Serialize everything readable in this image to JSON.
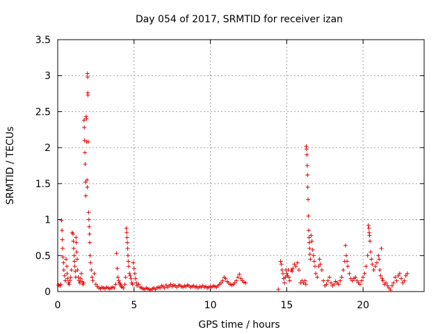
{
  "chart_data": {
    "type": "scatter",
    "title": "Day 054 of 2017, SRMTID for receiver izan",
    "xlabel": "GPS time / hours",
    "ylabel": "SRMTID / TECUs",
    "xlim": [
      0,
      24
    ],
    "ylim": [
      0,
      3.5
    ],
    "xticks": [
      0,
      5,
      10,
      15,
      20
    ],
    "yticks": [
      0,
      0.5,
      1,
      1.5,
      2,
      2.5,
      3,
      3.5
    ],
    "ytick_labels": [
      "0",
      "0.5",
      "1",
      "1.5",
      "2",
      "2.5",
      "3",
      "3.5"
    ],
    "grid": true,
    "marker": "+",
    "series": [
      {
        "name": "SRMTID",
        "color": "#e00000",
        "points": [
          [
            0.05,
            0.09
          ],
          [
            0.15,
            0.08
          ],
          [
            0.2,
            0.1
          ],
          [
            0.25,
            0.99
          ],
          [
            0.28,
            0.85
          ],
          [
            0.3,
            0.72
          ],
          [
            0.32,
            0.6
          ],
          [
            0.35,
            0.48
          ],
          [
            0.38,
            0.4
          ],
          [
            0.4,
            0.3
          ],
          [
            0.45,
            0.22
          ],
          [
            0.5,
            0.15
          ],
          [
            0.55,
            0.45
          ],
          [
            0.6,
            0.35
          ],
          [
            0.62,
            0.25
          ],
          [
            0.65,
            0.18
          ],
          [
            0.7,
            0.12
          ],
          [
            0.75,
            0.1
          ],
          [
            0.8,
            0.15
          ],
          [
            0.85,
            0.2
          ],
          [
            0.9,
            0.3
          ],
          [
            0.95,
            0.82
          ],
          [
            1.0,
            0.8
          ],
          [
            1.02,
            0.7
          ],
          [
            1.05,
            0.6
          ],
          [
            1.08,
            0.5
          ],
          [
            1.1,
            0.42
          ],
          [
            1.12,
            0.35
          ],
          [
            1.15,
            0.28
          ],
          [
            1.18,
            0.2
          ],
          [
            1.2,
            0.75
          ],
          [
            1.22,
            0.68
          ],
          [
            1.25,
            0.55
          ],
          [
            1.28,
            0.45
          ],
          [
            1.3,
            0.3
          ],
          [
            1.35,
            0.2
          ],
          [
            1.4,
            0.15
          ],
          [
            1.45,
            0.12
          ],
          [
            1.5,
            0.18
          ],
          [
            1.55,
            0.25
          ],
          [
            1.6,
            0.14
          ],
          [
            1.65,
            0.1
          ],
          [
            1.7,
            0.12
          ],
          [
            1.72,
            2.38
          ],
          [
            1.74,
            2.28
          ],
          [
            1.76,
            2.1
          ],
          [
            1.78,
            1.93
          ],
          [
            1.8,
            1.77
          ],
          [
            1.82,
            1.52
          ],
          [
            1.84,
            1.33
          ],
          [
            1.86,
            2.43
          ],
          [
            1.88,
            2.4
          ],
          [
            1.9,
            2.08
          ],
          [
            1.92,
            1.55
          ],
          [
            1.94,
            1.45
          ],
          [
            1.95,
            3.03
          ],
          [
            1.96,
            2.98
          ],
          [
            1.97,
            2.76
          ],
          [
            1.98,
            2.73
          ],
          [
            2.0,
            2.08
          ],
          [
            2.02,
            1.1
          ],
          [
            2.04,
            1.0
          ],
          [
            2.06,
            0.9
          ],
          [
            2.08,
            0.8
          ],
          [
            2.1,
            0.68
          ],
          [
            2.12,
            0.5
          ],
          [
            2.15,
            0.4
          ],
          [
            2.2,
            0.3
          ],
          [
            2.25,
            0.2
          ],
          [
            2.3,
            0.15
          ],
          [
            2.4,
            0.25
          ],
          [
            2.5,
            0.1
          ],
          [
            2.6,
            0.07
          ],
          [
            2.7,
            0.05
          ],
          [
            2.8,
            0.04
          ],
          [
            2.9,
            0.06
          ],
          [
            3.0,
            0.05
          ],
          [
            3.1,
            0.04
          ],
          [
            3.2,
            0.06
          ],
          [
            3.3,
            0.05
          ],
          [
            3.4,
            0.04
          ],
          [
            3.5,
            0.05
          ],
          [
            3.6,
            0.06
          ],
          [
            3.7,
            0.05
          ],
          [
            3.8,
            0.1
          ],
          [
            3.85,
            0.53
          ],
          [
            3.9,
            0.32
          ],
          [
            3.95,
            0.2
          ],
          [
            4.0,
            0.15
          ],
          [
            4.05,
            0.12
          ],
          [
            4.1,
            0.1
          ],
          [
            4.15,
            0.08
          ],
          [
            4.2,
            0.06
          ],
          [
            4.3,
            0.05
          ],
          [
            4.4,
            0.1
          ],
          [
            4.45,
            0.2
          ],
          [
            4.5,
            0.88
          ],
          [
            4.52,
            0.82
          ],
          [
            4.54,
            0.75
          ],
          [
            4.56,
            0.68
          ],
          [
            4.58,
            0.6
          ],
          [
            4.6,
            0.5
          ],
          [
            4.62,
            0.42
          ],
          [
            4.65,
            0.35
          ],
          [
            4.7,
            0.25
          ],
          [
            4.75,
            0.22
          ],
          [
            4.8,
            0.18
          ],
          [
            4.85,
            0.12
          ],
          [
            4.9,
            0.1
          ],
          [
            4.95,
            0.4
          ],
          [
            5.0,
            0.32
          ],
          [
            5.05,
            0.25
          ],
          [
            5.1,
            0.18
          ],
          [
            5.15,
            0.12
          ],
          [
            5.2,
            0.08
          ],
          [
            5.3,
            0.1
          ],
          [
            5.4,
            0.06
          ],
          [
            5.5,
            0.05
          ],
          [
            5.6,
            0.04
          ],
          [
            5.7,
            0.03
          ],
          [
            5.8,
            0.05
          ],
          [
            5.9,
            0.04
          ],
          [
            6.0,
            0.03
          ],
          [
            6.1,
            0.02
          ],
          [
            6.2,
            0.04
          ],
          [
            6.3,
            0.05
          ],
          [
            6.4,
            0.03
          ],
          [
            6.5,
            0.05
          ],
          [
            6.6,
            0.06
          ],
          [
            6.7,
            0.05
          ],
          [
            6.8,
            0.08
          ],
          [
            6.9,
            0.07
          ],
          [
            7.0,
            0.05
          ],
          [
            7.1,
            0.09
          ],
          [
            7.2,
            0.06
          ],
          [
            7.3,
            0.08
          ],
          [
            7.4,
            0.1
          ],
          [
            7.5,
            0.07
          ],
          [
            7.6,
            0.09
          ],
          [
            7.7,
            0.08
          ],
          [
            7.8,
            0.06
          ],
          [
            7.9,
            0.08
          ],
          [
            8.0,
            0.09
          ],
          [
            8.1,
            0.07
          ],
          [
            8.2,
            0.06
          ],
          [
            8.3,
            0.08
          ],
          [
            8.4,
            0.07
          ],
          [
            8.5,
            0.09
          ],
          [
            8.6,
            0.08
          ],
          [
            8.7,
            0.06
          ],
          [
            8.8,
            0.07
          ],
          [
            8.9,
            0.08
          ],
          [
            9.0,
            0.06
          ],
          [
            9.1,
            0.07
          ],
          [
            9.2,
            0.05
          ],
          [
            9.3,
            0.07
          ],
          [
            9.4,
            0.06
          ],
          [
            9.5,
            0.08
          ],
          [
            9.6,
            0.06
          ],
          [
            9.7,
            0.07
          ],
          [
            9.8,
            0.05
          ],
          [
            9.9,
            0.06
          ],
          [
            10.0,
            0.07
          ],
          [
            10.1,
            0.06
          ],
          [
            10.2,
            0.08
          ],
          [
            10.3,
            0.07
          ],
          [
            10.4,
            0.06
          ],
          [
            10.5,
            0.08
          ],
          [
            10.6,
            0.1
          ],
          [
            10.7,
            0.12
          ],
          [
            10.8,
            0.15
          ],
          [
            10.9,
            0.2
          ],
          [
            11.0,
            0.18
          ],
          [
            11.1,
            0.14
          ],
          [
            11.2,
            0.12
          ],
          [
            11.3,
            0.1
          ],
          [
            11.4,
            0.09
          ],
          [
            11.5,
            0.1
          ],
          [
            11.6,
            0.12
          ],
          [
            11.7,
            0.15
          ],
          [
            11.8,
            0.2
          ],
          [
            11.9,
            0.24
          ],
          [
            12.0,
            0.18
          ],
          [
            12.1,
            0.15
          ],
          [
            12.2,
            0.13
          ],
          [
            12.3,
            0.12
          ],
          [
            14.45,
            0.03
          ],
          [
            14.6,
            0.42
          ],
          [
            14.65,
            0.38
          ],
          [
            14.7,
            0.3
          ],
          [
            14.75,
            0.25
          ],
          [
            14.8,
            0.18
          ],
          [
            14.85,
            0.12
          ],
          [
            14.9,
            0.2
          ],
          [
            14.95,
            0.3
          ],
          [
            15.0,
            0.25
          ],
          [
            15.05,
            0.22
          ],
          [
            15.1,
            0.3
          ],
          [
            15.15,
            0.2
          ],
          [
            15.2,
            0.15
          ],
          [
            15.3,
            0.3
          ],
          [
            15.35,
            0.28
          ],
          [
            15.4,
            0.32
          ],
          [
            15.5,
            0.38
          ],
          [
            15.6,
            0.35
          ],
          [
            15.7,
            0.4
          ],
          [
            15.8,
            0.3
          ],
          [
            15.9,
            0.12
          ],
          [
            16.0,
            0.15
          ],
          [
            16.1,
            0.12
          ],
          [
            16.2,
            0.15
          ],
          [
            16.25,
            0.1
          ],
          [
            16.28,
            2.02
          ],
          [
            16.3,
            1.98
          ],
          [
            16.32,
            1.9
          ],
          [
            16.34,
            1.75
          ],
          [
            16.36,
            1.62
          ],
          [
            16.38,
            1.45
          ],
          [
            16.4,
            1.28
          ],
          [
            16.42,
            1.05
          ],
          [
            16.44,
            0.85
          ],
          [
            16.46,
            0.75
          ],
          [
            16.48,
            0.68
          ],
          [
            16.5,
            0.6
          ],
          [
            16.52,
            0.52
          ],
          [
            16.55,
            0.45
          ],
          [
            16.6,
            0.78
          ],
          [
            16.65,
            0.7
          ],
          [
            16.7,
            0.58
          ],
          [
            16.75,
            0.5
          ],
          [
            16.8,
            0.42
          ],
          [
            16.85,
            0.35
          ],
          [
            16.9,
            0.25
          ],
          [
            17.0,
            0.2
          ],
          [
            17.1,
            0.35
          ],
          [
            17.15,
            0.45
          ],
          [
            17.2,
            0.38
          ],
          [
            17.3,
            0.3
          ],
          [
            17.4,
            0.15
          ],
          [
            17.5,
            0.08
          ],
          [
            17.6,
            0.1
          ],
          [
            17.7,
            0.15
          ],
          [
            17.8,
            0.2
          ],
          [
            17.9,
            0.12
          ],
          [
            18.0,
            0.08
          ],
          [
            18.1,
            0.1
          ],
          [
            18.2,
            0.14
          ],
          [
            18.3,
            0.12
          ],
          [
            18.4,
            0.1
          ],
          [
            18.5,
            0.15
          ],
          [
            18.6,
            0.2
          ],
          [
            18.7,
            0.3
          ],
          [
            18.8,
            0.42
          ],
          [
            18.85,
            0.64
          ],
          [
            18.9,
            0.5
          ],
          [
            18.95,
            0.42
          ],
          [
            19.0,
            0.35
          ],
          [
            19.1,
            0.25
          ],
          [
            19.2,
            0.18
          ],
          [
            19.3,
            0.15
          ],
          [
            19.4,
            0.18
          ],
          [
            19.5,
            0.2
          ],
          [
            19.6,
            0.15
          ],
          [
            19.7,
            0.12
          ],
          [
            19.8,
            0.1
          ],
          [
            19.9,
            0.15
          ],
          [
            20.0,
            0.2
          ],
          [
            20.1,
            0.25
          ],
          [
            20.2,
            0.35
          ],
          [
            20.3,
            0.5
          ],
          [
            20.35,
            0.92
          ],
          [
            20.38,
            0.88
          ],
          [
            20.4,
            0.82
          ],
          [
            20.42,
            0.78
          ],
          [
            20.45,
            0.7
          ],
          [
            20.5,
            0.55
          ],
          [
            20.55,
            0.45
          ],
          [
            20.6,
            0.38
          ],
          [
            20.7,
            0.3
          ],
          [
            20.8,
            0.35
          ],
          [
            20.9,
            0.4
          ],
          [
            21.0,
            0.5
          ],
          [
            21.05,
            0.45
          ],
          [
            21.1,
            0.3
          ],
          [
            21.15,
            0.22
          ],
          [
            21.2,
            0.6
          ],
          [
            21.25,
            0.18
          ],
          [
            21.3,
            0.15
          ],
          [
            21.4,
            0.1
          ],
          [
            21.5,
            0.12
          ],
          [
            21.6,
            0.08
          ],
          [
            21.7,
            0.05
          ],
          [
            21.8,
            0.02
          ],
          [
            21.9,
            0.08
          ],
          [
            22.0,
            0.12
          ],
          [
            22.1,
            0.2
          ],
          [
            22.2,
            0.15
          ],
          [
            22.3,
            0.22
          ],
          [
            22.4,
            0.25
          ],
          [
            22.5,
            0.18
          ],
          [
            22.6,
            0.12
          ],
          [
            22.7,
            0.15
          ],
          [
            22.8,
            0.22
          ],
          [
            22.9,
            0.25
          ]
        ]
      }
    ]
  }
}
